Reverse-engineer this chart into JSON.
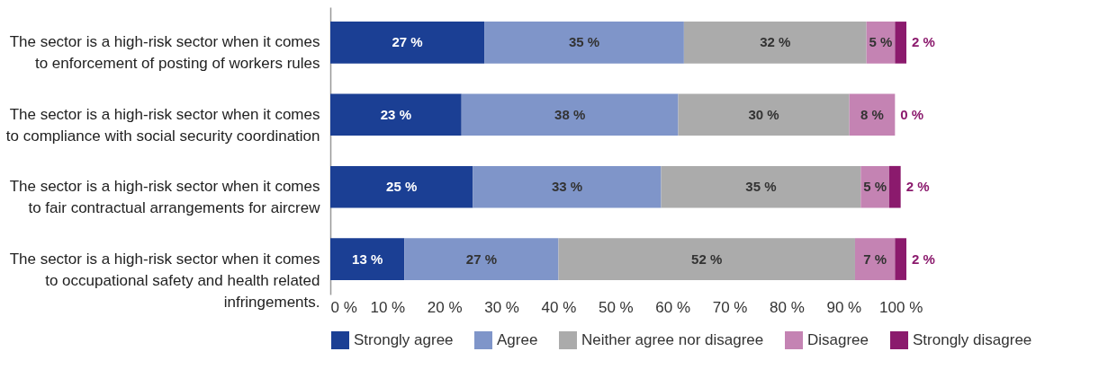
{
  "chart_data": {
    "type": "bar",
    "orientation": "horizontal",
    "stacked": true,
    "categories": [
      "The sector is a high-risk sector when it comes to enforcement of posting of workers rules",
      "The sector is a high-risk sector when it comes to compliance with social security coordination",
      "The sector is a high-risk sector when it comes to fair contractual arrangements for aircrew",
      "The sector is a high-risk sector when it comes to occupational safety and health related infringements."
    ],
    "series": [
      {
        "name": "Strongly agree",
        "color": "#1b3f94",
        "values": [
          27,
          23,
          25,
          13
        ],
        "value_labels": [
          "27 %",
          "23 %",
          "25 %",
          "13 %"
        ]
      },
      {
        "name": "Agree",
        "color": "#7f95c9",
        "values": [
          35,
          38,
          33,
          27
        ],
        "value_labels": [
          "35 %",
          "38 %",
          "33 %",
          "27 %"
        ]
      },
      {
        "name": "Neither agree nor disagree",
        "color": "#ababab",
        "values": [
          32,
          30,
          35,
          52
        ],
        "value_labels": [
          "32 %",
          "30 %",
          "35 %",
          "52 %"
        ]
      },
      {
        "name": "Disagree",
        "color": "#c483b3",
        "values": [
          5,
          8,
          5,
          7
        ],
        "value_labels": [
          "5 %",
          "8 %",
          "5 %",
          "7 %"
        ]
      },
      {
        "name": "Strongly disagree",
        "color": "#8b1a6d",
        "values": [
          2,
          0,
          2,
          2
        ],
        "value_labels": [
          "2 %",
          "0 %",
          "2 %",
          "2 %"
        ]
      }
    ],
    "xlim": [
      0,
      101
    ],
    "xticks": [
      {
        "value": 0,
        "label": "0 %"
      },
      {
        "value": 10,
        "label": "10 %"
      },
      {
        "value": 20,
        "label": "20 %"
      },
      {
        "value": 30,
        "label": "30 %"
      },
      {
        "value": 40,
        "label": "40 %"
      },
      {
        "value": 50,
        "label": "50 %"
      },
      {
        "value": 60,
        "label": "60 %"
      },
      {
        "value": 70,
        "label": "70 %"
      },
      {
        "value": 80,
        "label": "80 %"
      },
      {
        "value": 90,
        "label": "90 %"
      },
      {
        "value": 100,
        "label": "100 %"
      }
    ],
    "grid": false,
    "legend": "bottom"
  }
}
